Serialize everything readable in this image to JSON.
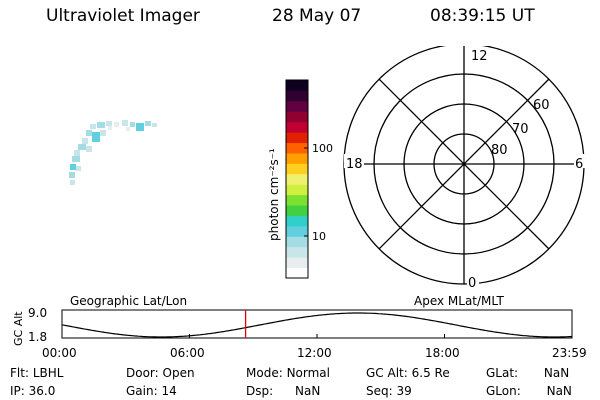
{
  "header": {
    "instrument": "Ultraviolet Imager",
    "date": "28 May 07",
    "time": "08:39:15 UT"
  },
  "colorbar": {
    "label": "photon cm⁻²s⁻¹",
    "ticks": [
      "100",
      "10"
    ],
    "colors": [
      "#ffffff",
      "#e6eef0",
      "#c8e6ea",
      "#a4dce4",
      "#60d0e0",
      "#30d0c8",
      "#40d040",
      "#7ce030",
      "#d0f040",
      "#f0f070",
      "#ffd020",
      "#ffa000",
      "#ff6000",
      "#e02000",
      "#c00030",
      "#900030",
      "#600040",
      "#300030",
      "#100020"
    ]
  },
  "polar": {
    "mlt_labels": {
      "top": "12",
      "bottom": "0",
      "left": "18",
      "right": "6"
    },
    "lat_labels": [
      "60",
      "70",
      "80"
    ]
  },
  "orbit": {
    "left_title": "Geographic Lat/Lon",
    "right_title": "Apex MLat/MLT",
    "y_axis_label": "GC Alt",
    "y_ticks": [
      "9.0",
      "1.8"
    ],
    "x_ticks": [
      "00:00",
      "06:00",
      "12:00",
      "18:00",
      "23:59"
    ],
    "current_time_fraction": 0.36,
    "marker_color": "#e00000"
  },
  "info": {
    "flt": {
      "label": "Flt:",
      "value": "LBHL"
    },
    "ip": {
      "label": "IP:",
      "value": "36.0"
    },
    "door": {
      "label": "Door:",
      "value": "Open"
    },
    "gain": {
      "label": "Gain:",
      "value": "14"
    },
    "mode": {
      "label": "Mode:",
      "value": "Normal"
    },
    "dsp": {
      "label": "Dsp:",
      "value": "NaN"
    },
    "gcalt": {
      "label": "GC Alt:",
      "value": "6.5 Re"
    },
    "seq": {
      "label": "Seq:",
      "value": "39"
    },
    "glat": {
      "label": "GLat:",
      "value": "NaN"
    },
    "glon": {
      "label": "GLon:",
      "value": "NaN"
    }
  }
}
